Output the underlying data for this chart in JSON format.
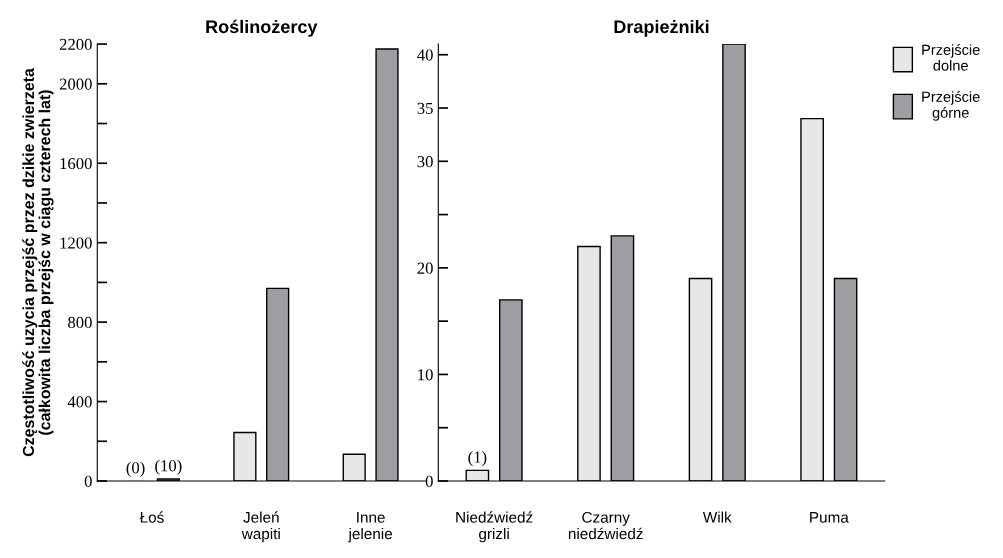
{
  "chart_data": [
    {
      "type": "bar",
      "title": "Roślinożercy",
      "ylabel": "Częstotliwość uzycia przejść przez dzikie zwierzeta\n(całkowita liczba przejśc w ciągu czterech lat)",
      "categories": [
        "Łoś",
        "Jeleń\nwapiti",
        "Inne\njelenie"
      ],
      "series": [
        {
          "color": "#e6e7e8",
          "values": [
            0,
            244,
            135
          ],
          "value_labels": [
            "(0)",
            null,
            null
          ]
        },
        {
          "color": "#9d9ea2",
          "values": [
            10,
            970,
            2175
          ],
          "value_labels": [
            "(10)",
            null,
            null
          ]
        }
      ],
      "ylim": [
        0,
        2200
      ],
      "yticks": [
        0,
        {
          "value": 200,
          "label": null
        },
        400,
        {
          "value": 600,
          "label": null
        },
        800,
        {
          "value": 1000,
          "label": null
        },
        1200,
        {
          "value": 1400,
          "label": null
        },
        1600,
        {
          "value": 1800,
          "label": null
        },
        2000,
        2200
      ],
      "grid": false,
      "legend": false
    },
    {
      "type": "bar",
      "title": "Drapieżniki",
      "categories": [
        "Niedźwiedź\ngrizli",
        "Czarny\nniedźwiedź",
        "Wilk",
        "Puma"
      ],
      "series": [
        {
          "name": "Przejście\ndolne",
          "color": "#e6e7e8",
          "values": [
            1,
            22,
            19,
            34
          ],
          "value_labels": [
            "(1)",
            null,
            null,
            null
          ]
        },
        {
          "name": "Przejście\ngórne",
          "color": "#9d9ea2",
          "values": [
            17,
            23,
            41,
            19
          ]
        }
      ],
      "ylim": [
        0,
        41
      ],
      "yticks": [
        0,
        {
          "value": 5,
          "label": null
        },
        10,
        {
          "value": 15,
          "label": null
        },
        20,
        {
          "value": 25,
          "label": null
        },
        30,
        35,
        40
      ],
      "grid": false,
      "legend": "top right"
    }
  ]
}
